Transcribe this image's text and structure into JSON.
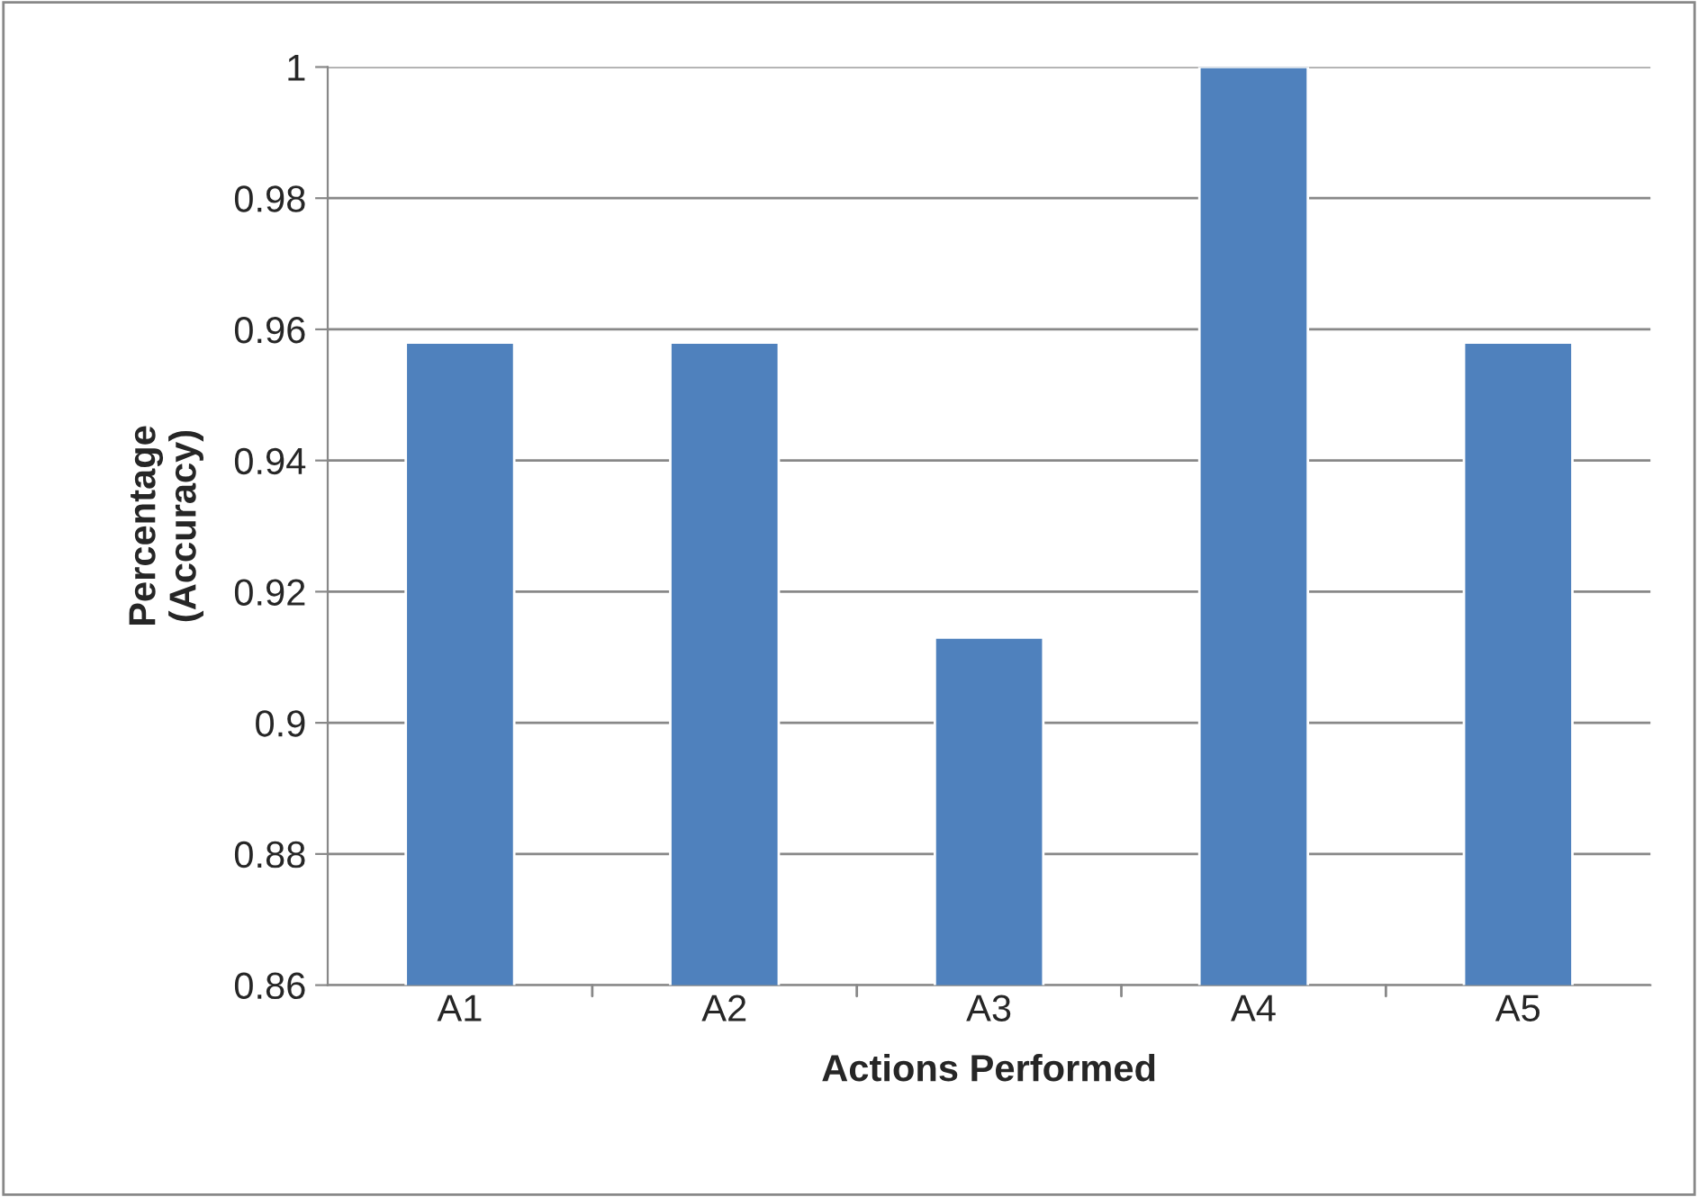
{
  "chart_data": {
    "type": "bar",
    "xlabel": "Actions Performed",
    "ylabel": "Percentage\n(Accuracy)",
    "categories": [
      "A1",
      "A2",
      "A3",
      "A4",
      "A5"
    ],
    "values": [
      0.958,
      0.958,
      0.913,
      1.0,
      0.958
    ],
    "color": "#4f81bd",
    "ylim": [
      0.86,
      1.0
    ],
    "yticks": [
      0.86,
      0.88,
      0.9,
      0.92,
      0.94,
      0.96,
      0.98,
      1
    ],
    "grid": "y"
  }
}
